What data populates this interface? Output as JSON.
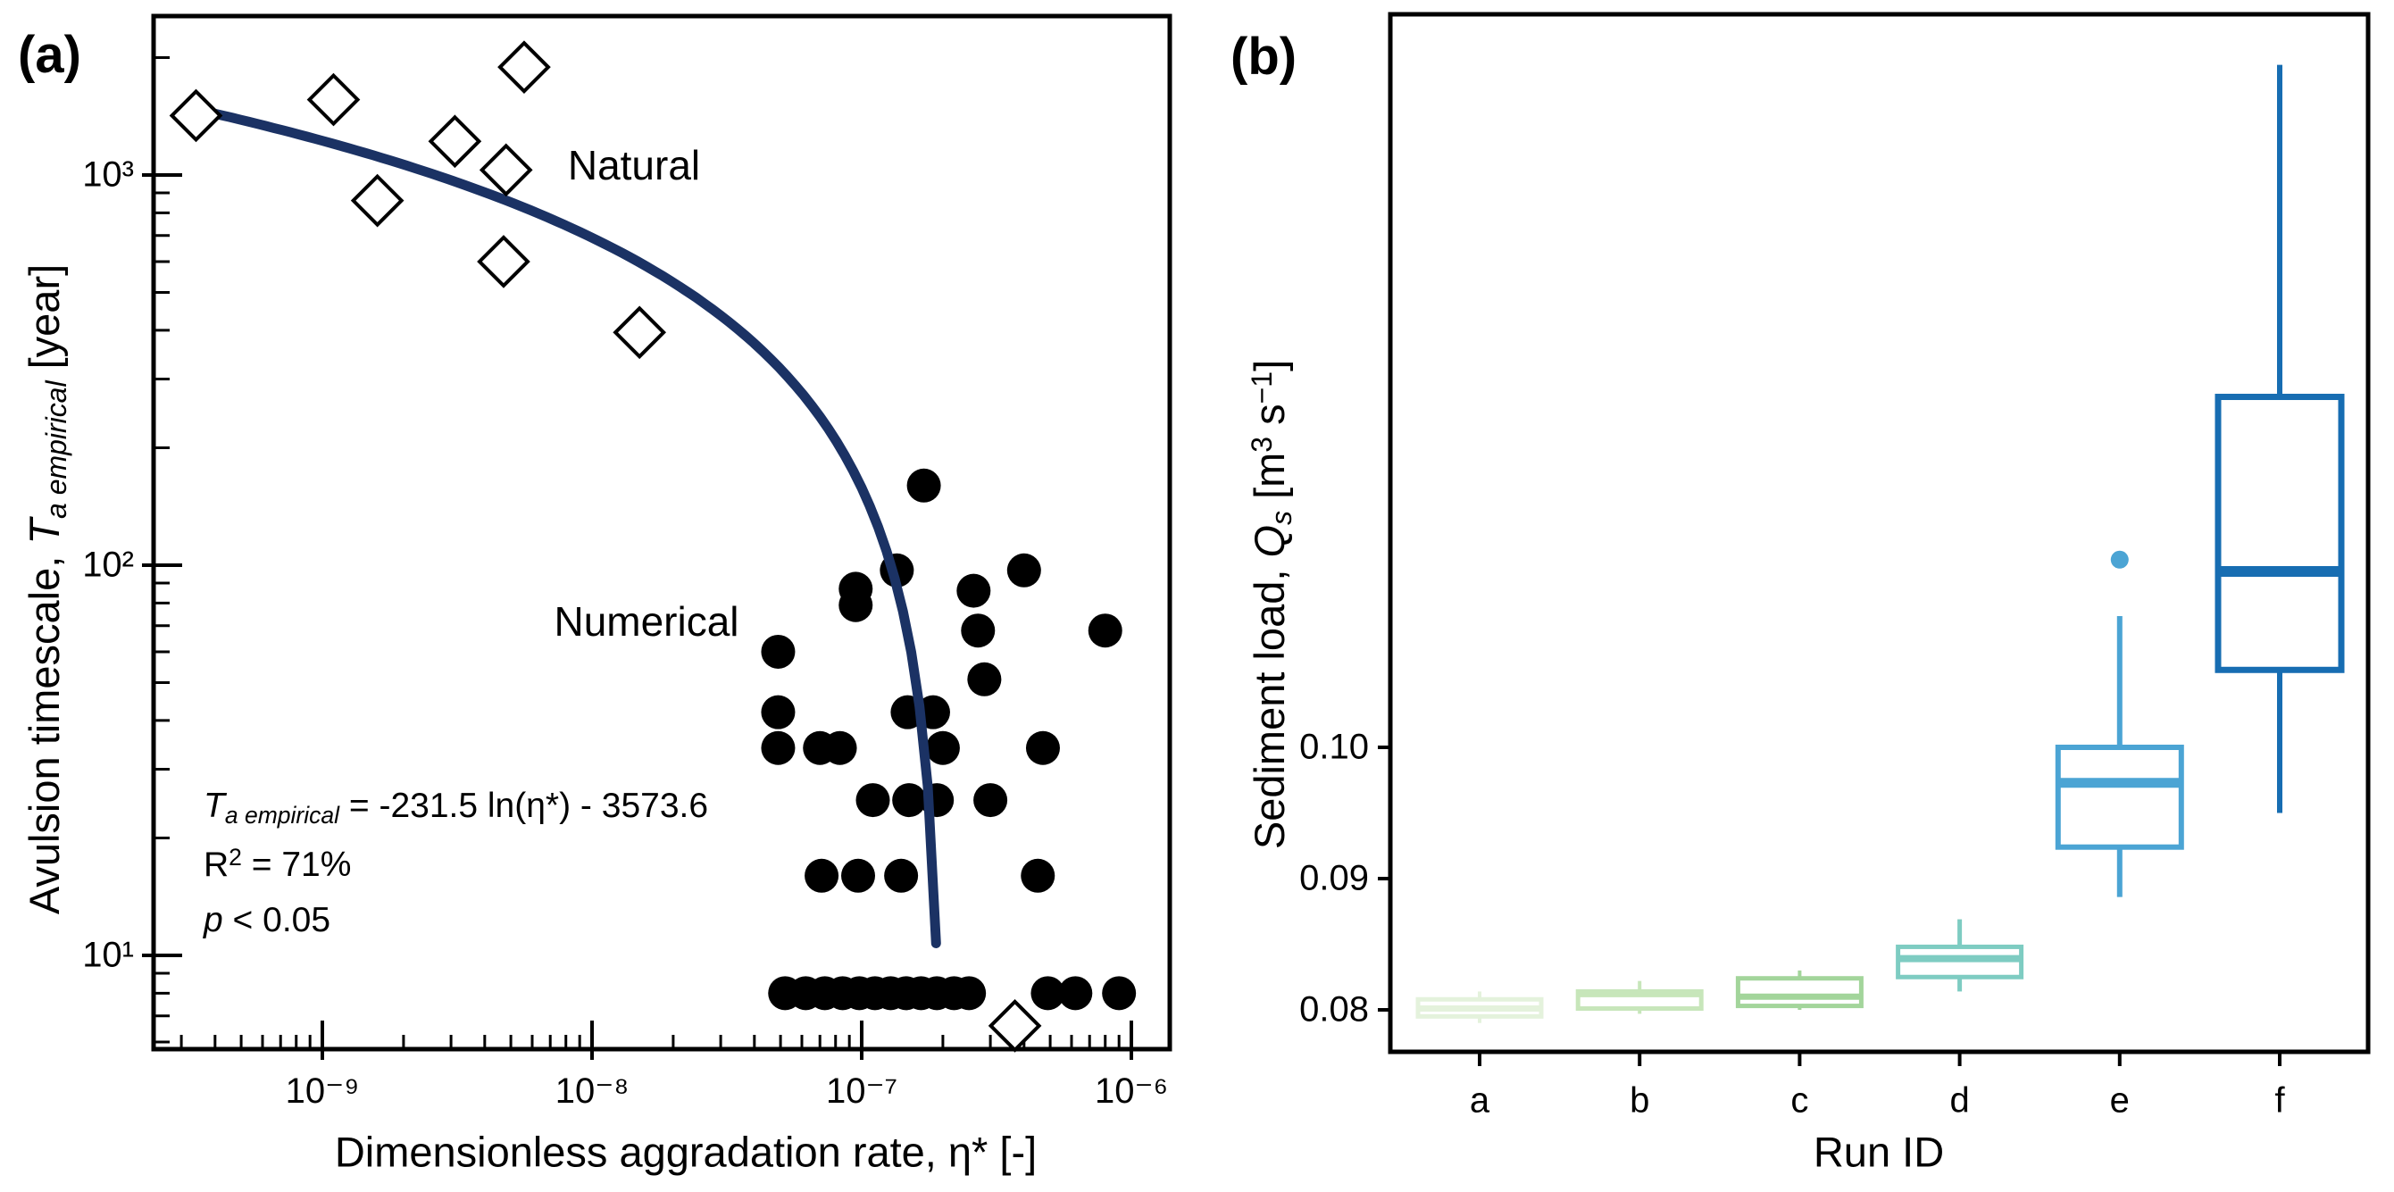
{
  "figure": {
    "panel_a_tag": "(a)",
    "panel_b_tag": "(b)",
    "background": "#ffffff",
    "text_color": "#000000"
  },
  "chart_data": [
    {
      "type": "scatter",
      "panel": "a",
      "x_scale": "log",
      "y_scale": "log",
      "xlabel": "Dimensionless aggradation rate, η* [-]",
      "ylabel_parts": [
        {
          "t": "Avulsion timescale, "
        },
        {
          "t": "T",
          "style": "italic"
        },
        {
          "t": "a empirical",
          "style": "sub"
        },
        {
          "t": " [year]"
        }
      ],
      "xlim": [
        2.45e-10,
        1.26e-06
      ],
      "ylim": [
        5.4,
        2570
      ],
      "x_ticks": [
        {
          "label": "10⁻⁹",
          "value": 1e-09
        },
        {
          "label": "10⁻⁸",
          "value": 1e-08
        },
        {
          "label": "10⁻⁷",
          "value": 1e-07
        },
        {
          "label": "10⁻⁶",
          "value": 1e-06
        }
      ],
      "y_ticks": [
        {
          "label": "10³",
          "value": 1000
        },
        {
          "label": "10²",
          "value": 100
        },
        {
          "label": "10¹",
          "value": 10
        }
      ],
      "grid": false,
      "series": [
        {
          "name": "Natural",
          "marker": "diamond",
          "marker_fill": "#ffffff",
          "marker_edge": "#000000",
          "points": [
            [
              3.4e-10,
              1420
            ],
            [
              1.1e-09,
              1560
            ],
            [
              1.6e-09,
              860
            ],
            [
              3.1e-09,
              1220
            ],
            [
              4.8e-09,
              1030
            ],
            [
              5.6e-09,
              1890
            ],
            [
              4.7e-09,
              600
            ],
            [
              1.5e-08,
              395
            ],
            [
              3.7e-07,
              6.6
            ]
          ]
        },
        {
          "name": "Numerical",
          "marker": "circle",
          "marker_fill": "#000000",
          "points": [
            [
              1.7e-07,
              160
            ],
            [
              1.35e-07,
              97
            ],
            [
              4e-07,
              97
            ],
            [
              9.5e-08,
              87
            ],
            [
              2.6e-07,
              86
            ],
            [
              9.5e-08,
              79
            ],
            [
              2.7e-07,
              68
            ],
            [
              8e-07,
              68
            ],
            [
              4.9e-08,
              60
            ],
            [
              2.85e-07,
              51
            ],
            [
              4.9e-08,
              42
            ],
            [
              1.48e-07,
              42
            ],
            [
              1.84e-07,
              42
            ],
            [
              4.9e-08,
              34
            ],
            [
              7e-08,
              34
            ],
            [
              8.3e-08,
              34
            ],
            [
              2e-07,
              34
            ],
            [
              4.7e-07,
              34
            ],
            [
              1.1e-07,
              25
            ],
            [
              1.5e-07,
              25
            ],
            [
              1.9e-07,
              25
            ],
            [
              3e-07,
              25
            ],
            [
              7.1e-08,
              16
            ],
            [
              9.7e-08,
              16
            ],
            [
              1.4e-07,
              16
            ],
            [
              4.5e-07,
              16
            ],
            [
              5.2e-08,
              8
            ],
            [
              6.2e-08,
              8
            ],
            [
              7.3e-08,
              8
            ],
            [
              8.5e-08,
              8
            ],
            [
              9.8e-08,
              8
            ],
            [
              1.12e-07,
              8
            ],
            [
              1.28e-07,
              8
            ],
            [
              1.46e-07,
              8
            ],
            [
              1.66e-07,
              8
            ],
            [
              1.9e-07,
              8
            ],
            [
              2.2e-07,
              8
            ],
            [
              2.5e-07,
              8
            ],
            [
              4.9e-07,
              8
            ],
            [
              6.2e-07,
              8
            ],
            [
              9e-07,
              8
            ]
          ]
        }
      ],
      "fit_curve": {
        "color": "#1b3264",
        "slope": -231.5,
        "intercept": -3573.6,
        "x_start": 3.5e-10,
        "x_end": 1.887e-07
      },
      "series_labels": [
        {
          "text": "Natural"
        },
        {
          "text": "Numerical"
        }
      ],
      "annotation_lines": [
        {
          "parts": [
            {
              "t": "T",
              "style": "italic"
            },
            {
              "t": "a empirical",
              "style": "sub"
            },
            {
              "t": " = -231.5 ln(η*) - 3573.6"
            }
          ]
        },
        {
          "parts": [
            {
              "t": "R"
            },
            {
              "t": "2",
              "style": "sup"
            },
            {
              "t": " = 71%"
            }
          ]
        },
        {
          "parts": [
            {
              "t": "p",
              "style": "italic"
            },
            {
              "t": " < 0.05"
            }
          ]
        }
      ]
    },
    {
      "type": "box",
      "panel": "b",
      "y_scale": "linear",
      "xlabel": "Run ID",
      "ylabel_parts": [
        {
          "t": "Sediment load, "
        },
        {
          "t": "Q",
          "style": "italic"
        },
        {
          "t": "s",
          "style": "sub"
        },
        {
          "t": " [m"
        },
        {
          "t": "3",
          "style": "sup"
        },
        {
          "t": " s"
        },
        {
          "t": "−1",
          "style": "sup"
        },
        {
          "t": "]"
        }
      ],
      "ylim": [
        0.0765,
        0.156
      ],
      "y_ticks": [
        {
          "label": "0.10",
          "value": 0.1
        },
        {
          "label": "0.09",
          "value": 0.09
        },
        {
          "label": "0.08",
          "value": 0.08
        }
      ],
      "categories": [
        "a",
        "b",
        "c",
        "d",
        "e",
        "f"
      ],
      "boxes": [
        {
          "category": "a",
          "color": "#e4f2dc",
          "whislo": 0.079,
          "q1": 0.0795,
          "med": 0.0801,
          "q3": 0.0808,
          "whishi": 0.0814,
          "outliers": []
        },
        {
          "category": "b",
          "color": "#c7e6ba",
          "whislo": 0.0797,
          "q1": 0.0801,
          "med": 0.0812,
          "q3": 0.0814,
          "whishi": 0.0822,
          "outliers": []
        },
        {
          "category": "c",
          "color": "#a3d59b",
          "whislo": 0.08,
          "q1": 0.0803,
          "med": 0.081,
          "q3": 0.0824,
          "whishi": 0.083,
          "outliers": []
        },
        {
          "category": "d",
          "color": "#7eccc2",
          "whislo": 0.0814,
          "q1": 0.0825,
          "med": 0.0839,
          "q3": 0.0848,
          "whishi": 0.0869,
          "outliers": []
        },
        {
          "category": "e",
          "color": "#4ba4d4",
          "whislo": 0.0886,
          "q1": 0.0924,
          "med": 0.0973,
          "q3": 0.1,
          "whishi": 0.11,
          "outliers": [
            0.1143
          ]
        },
        {
          "category": "f",
          "color": "#176db2",
          "whislo": 0.095,
          "q1": 0.1059,
          "med": 0.1134,
          "q3": 0.1267,
          "whishi": 0.152,
          "outliers": []
        }
      ]
    }
  ]
}
